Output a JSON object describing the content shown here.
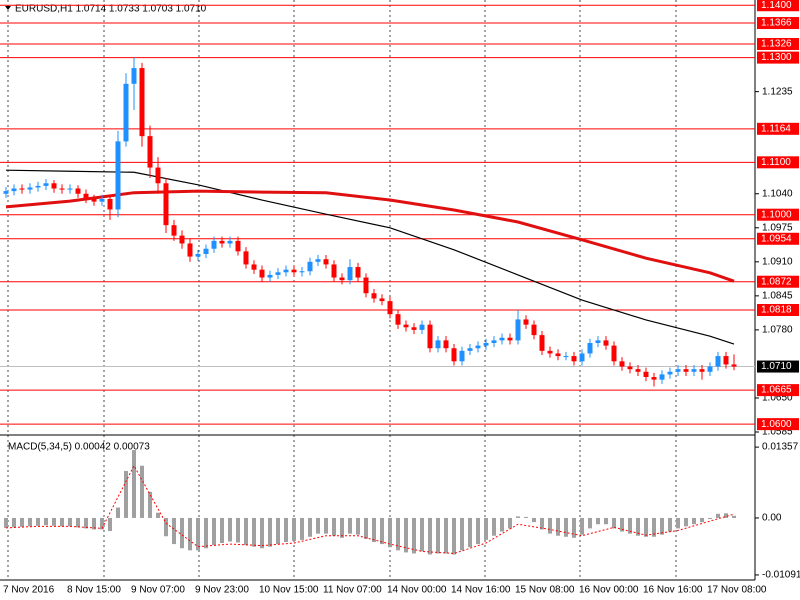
{
  "chart_data": [
    {
      "type": "candlestick",
      "title": "EURUSD,H1  1.0714 1.0733 1.0703 1.0710",
      "categories": [
        "7 Nov 2016",
        null,
        null,
        null,
        null,
        null,
        null,
        null,
        "8 Nov 15:00",
        null,
        null,
        null,
        null,
        null,
        null,
        null,
        "9 Nov 07:00",
        null,
        null,
        null,
        null,
        null,
        null,
        null,
        "9 Nov 23:00",
        null,
        null,
        null,
        null,
        null,
        null,
        null,
        "10 Nov 15:00",
        null,
        null,
        null,
        null,
        null,
        null,
        null,
        "11 Nov 07:00",
        null,
        null,
        null,
        null,
        null,
        null,
        null,
        "14 Nov 00:00",
        null,
        null,
        null,
        null,
        null,
        null,
        null,
        "14 Nov 16:00",
        null,
        null,
        null,
        null,
        null,
        null,
        null,
        "15 Nov 08:00",
        null,
        null,
        null,
        null,
        null,
        null,
        null,
        "16 Nov 00:00",
        null,
        null,
        null,
        null,
        null,
        null,
        null,
        "16 Nov 16:00",
        null,
        null,
        null,
        null,
        null,
        null,
        null,
        "17 Nov 08:00",
        null,
        null,
        null
      ],
      "open": [
        1.104,
        1.1045,
        1.105,
        1.1048,
        1.1052,
        1.1055,
        1.106,
        1.105,
        1.1048,
        1.105,
        1.104,
        1.103,
        1.1025,
        1.103,
        1.101,
        1.114,
        1.125,
        1.128,
        1.115,
        1.109,
        1.106,
        1.098,
        1.096,
        1.0945,
        1.092,
        1.0925,
        1.0935,
        1.095,
        1.0945,
        1.095,
        1.093,
        1.0905,
        1.0895,
        1.088,
        1.0885,
        1.089,
        1.0895,
        1.089,
        1.0892,
        1.091,
        1.0915,
        1.0905,
        1.088,
        1.0875,
        1.09,
        1.088,
        1.085,
        1.084,
        1.0835,
        1.081,
        1.079,
        1.0785,
        1.078,
        1.079,
        1.0745,
        1.076,
        1.0745,
        1.072,
        1.074,
        1.0745,
        1.075,
        1.0755,
        1.076,
        1.0765,
        1.076,
        1.08,
        1.079,
        1.077,
        1.074,
        1.0735,
        1.073,
        1.073,
        1.072,
        1.0735,
        1.0755,
        1.076,
        1.075,
        1.072,
        1.071,
        1.0705,
        1.07,
        1.069,
        1.0685,
        1.0695,
        1.07,
        1.0705,
        1.07,
        1.0705,
        1.07,
        1.071,
        1.073,
        1.0714
      ],
      "high": [
        1.1053,
        1.1058,
        1.1058,
        1.106,
        1.1063,
        1.1068,
        1.1066,
        1.1058,
        1.1058,
        1.1056,
        1.1048,
        1.1038,
        1.1038,
        1.1038,
        1.116,
        1.127,
        1.13,
        1.129,
        1.117,
        1.111,
        1.107,
        1.099,
        1.097,
        1.0955,
        1.0933,
        1.0943,
        1.0958,
        1.0958,
        1.0958,
        1.0958,
        1.0938,
        1.0913,
        1.0903,
        1.0893,
        1.0898,
        1.0903,
        1.0903,
        1.09,
        1.0918,
        1.0923,
        1.0923,
        1.0913,
        1.0888,
        1.0915,
        1.0908,
        1.0888,
        1.0858,
        1.0848,
        1.0843,
        1.0818,
        1.0798,
        1.0793,
        1.0798,
        1.0798,
        1.0768,
        1.0768,
        1.0753,
        1.0748,
        1.0753,
        1.0758,
        1.0763,
        1.0768,
        1.0773,
        1.0773,
        1.0818,
        1.0808,
        1.0798,
        1.0778,
        1.0748,
        1.0743,
        1.0738,
        1.0738,
        1.0743,
        1.0763,
        1.0768,
        1.0768,
        1.0758,
        1.0728,
        1.0718,
        1.0713,
        1.0708,
        1.0698,
        1.0703,
        1.0708,
        1.0713,
        1.0713,
        1.0713,
        1.0713,
        1.0718,
        1.0738,
        1.0738,
        1.0733
      ],
      "low": [
        1.1032,
        1.1037,
        1.104,
        1.104,
        1.1044,
        1.1047,
        1.1042,
        1.104,
        1.104,
        1.1032,
        1.1022,
        1.1017,
        1.1017,
        1.099,
        1.0995,
        1.113,
        1.12,
        1.113,
        1.107,
        1.104,
        1.0965,
        1.095,
        1.0935,
        1.091,
        1.0912,
        1.0917,
        1.0927,
        1.0937,
        1.0937,
        1.0922,
        1.0897,
        1.0887,
        1.0872,
        1.0872,
        1.0877,
        1.0882,
        1.0882,
        1.0882,
        1.0884,
        1.0902,
        1.0897,
        1.0872,
        1.0867,
        1.0867,
        1.0872,
        1.0842,
        1.0832,
        1.0827,
        1.0802,
        1.0782,
        1.0777,
        1.0772,
        1.0772,
        1.0737,
        1.0737,
        1.0737,
        1.0712,
        1.0712,
        1.0732,
        1.0737,
        1.0742,
        1.0747,
        1.0752,
        1.0752,
        1.0752,
        1.0782,
        1.0762,
        1.0732,
        1.0727,
        1.0722,
        1.0722,
        1.0712,
        1.0712,
        1.0727,
        1.0747,
        1.0742,
        1.0712,
        1.0702,
        1.0697,
        1.0692,
        1.0682,
        1.0672,
        1.0677,
        1.0687,
        1.0692,
        1.0692,
        1.0692,
        1.0685,
        1.0692,
        1.0702,
        1.0706,
        1.0703
      ],
      "close": [
        1.1045,
        1.105,
        1.1048,
        1.1052,
        1.1055,
        1.106,
        1.105,
        1.1048,
        1.105,
        1.104,
        1.103,
        1.1025,
        1.103,
        1.101,
        1.114,
        1.125,
        1.128,
        1.115,
        1.109,
        1.106,
        1.098,
        1.096,
        1.0945,
        1.092,
        1.0925,
        1.0935,
        1.095,
        1.0945,
        1.095,
        1.093,
        1.0905,
        1.0895,
        1.088,
        1.0885,
        1.089,
        1.0895,
        1.089,
        1.0892,
        1.091,
        1.0915,
        1.0905,
        1.088,
        1.0875,
        1.09,
        1.088,
        1.085,
        1.084,
        1.0835,
        1.081,
        1.079,
        1.0785,
        1.078,
        1.079,
        1.0745,
        1.076,
        1.0745,
        1.072,
        1.074,
        1.0745,
        1.075,
        1.0755,
        1.076,
        1.0765,
        1.076,
        1.08,
        1.079,
        1.077,
        1.074,
        1.0735,
        1.073,
        1.073,
        1.072,
        1.0735,
        1.0755,
        1.076,
        1.075,
        1.072,
        1.071,
        1.0705,
        1.07,
        1.069,
        1.0685,
        1.0695,
        1.07,
        1.0705,
        1.07,
        1.0705,
        1.07,
        1.071,
        1.073,
        1.0714,
        1.071
      ],
      "up_color": "#1e90ff",
      "down_color": "#ff0000",
      "lines": [
        {
          "color": "#000000",
          "x": [
            0,
            8,
            16,
            24,
            32,
            40,
            48,
            56,
            64,
            72,
            80,
            88,
            91
          ],
          "values": [
            1.1085,
            1.1083,
            1.1081,
            1.1057,
            1.1028,
            1.1001,
            1.0975,
            1.0933,
            1.0885,
            1.0837,
            1.0799,
            1.0768,
            1.0753
          ]
        },
        {
          "color": "#e01010",
          "x": [
            0,
            8,
            16,
            24,
            32,
            40,
            48,
            56,
            64,
            72,
            80,
            88,
            91
          ],
          "values": [
            1.1015,
            1.1026,
            1.1042,
            1.1045,
            1.1043,
            1.1042,
            1.1028,
            1.1009,
            1.0986,
            1.0952,
            1.0917,
            1.0889,
            1.0873
          ]
        }
      ],
      "ylim": [
        1.0585,
        1.141
      ],
      "yticks": [
        1.1235,
        {
          "value": 1.104,
          "label": "1.1040"
        },
        1.0975,
        {
          "value": 1.091,
          "label": "1.0910"
        },
        1.0845,
        {
          "value": 1.078,
          "label": "1.0780"
        },
        {
          "value": 1.065,
          "label": "1.0650"
        },
        1.0585
      ],
      "levels": [
        {
          "value": 1.14,
          "label": "1.1400"
        },
        {
          "value": 1.1366,
          "label": "1.1366"
        },
        {
          "value": 1.1326,
          "label": "1.1326"
        },
        {
          "value": 1.13,
          "label": "1.1300"
        },
        {
          "value": 1.1164,
          "label": "1.1164"
        },
        {
          "value": 1.11,
          "label": "1.1100"
        },
        {
          "value": 1.1,
          "label": "1.1000"
        },
        {
          "value": 1.0954,
          "label": "1.0954"
        },
        {
          "value": 1.0872,
          "label": "1.0872"
        },
        {
          "value": 1.0818,
          "label": "1.0818"
        },
        {
          "value": 1.0665,
          "label": "1.0665"
        },
        {
          "value": 1.06,
          "label": "1.0600"
        }
      ],
      "level_color": "#ff0000",
      "current_price": {
        "value": 1.071,
        "label": "1.0710"
      }
    },
    {
      "type": "macd",
      "title": "MACD(5,34,5) 0.00042 0.00073",
      "values": [
        -0.0019,
        -0.0018,
        -0.0017,
        -0.0016,
        -0.0015,
        -0.0014,
        -0.0015,
        -0.0016,
        -0.0016,
        -0.0018,
        -0.002,
        -0.0022,
        -0.0022,
        -0.0025,
        0.002,
        0.009,
        0.013,
        0.01,
        0.005,
        0.001,
        -0.0035,
        -0.005,
        -0.0058,
        -0.0062,
        -0.0062,
        -0.0058,
        -0.0052,
        -0.0048,
        -0.0045,
        -0.0047,
        -0.0052,
        -0.0055,
        -0.0058,
        -0.0055,
        -0.005,
        -0.0046,
        -0.0044,
        -0.0042,
        -0.0036,
        -0.003,
        -0.003,
        -0.0034,
        -0.0038,
        -0.003,
        -0.0032,
        -0.004,
        -0.0046,
        -0.005,
        -0.0056,
        -0.0062,
        -0.0066,
        -0.0068,
        -0.0064,
        -0.007,
        -0.0068,
        -0.0068,
        -0.007,
        -0.0062,
        -0.0056,
        -0.005,
        -0.0042,
        -0.0034,
        -0.0026,
        -0.002,
        0.0003,
        0.0002,
        -0.0008,
        -0.0022,
        -0.003,
        -0.0034,
        -0.0036,
        -0.0038,
        -0.0032,
        -0.002,
        -0.0012,
        -0.0012,
        -0.002,
        -0.0026,
        -0.003,
        -0.0034,
        -0.0036,
        -0.0036,
        -0.0032,
        -0.0026,
        -0.002,
        -0.0016,
        -0.0012,
        -0.0008,
        -0.0002,
        0.0008,
        0.0009,
        0.00042
      ],
      "color": "#a0a0a0",
      "signal": {
        "color": "#ff0000",
        "x": [
          0,
          4,
          8,
          12,
          16,
          20,
          24,
          28,
          32,
          36,
          40,
          44,
          48,
          52,
          56,
          60,
          64,
          68,
          72,
          76,
          80,
          84,
          88,
          91
        ],
        "values": [
          -0.0019,
          -0.0016,
          -0.0016,
          -0.002,
          0.01,
          -0.001,
          -0.0055,
          -0.005,
          -0.0053,
          -0.0048,
          -0.0034,
          -0.0034,
          -0.005,
          -0.0064,
          -0.0068,
          -0.0048,
          -0.0012,
          -0.0022,
          -0.0034,
          -0.0018,
          -0.0033,
          -0.0024,
          -0.0006,
          0.00073
        ]
      },
      "ylim": [
        -0.01188,
        0.01493
      ],
      "yticks": [
        0.01357,
        {
          "value": 0,
          "label": "0.00"
        },
        -0.01091
      ]
    }
  ]
}
